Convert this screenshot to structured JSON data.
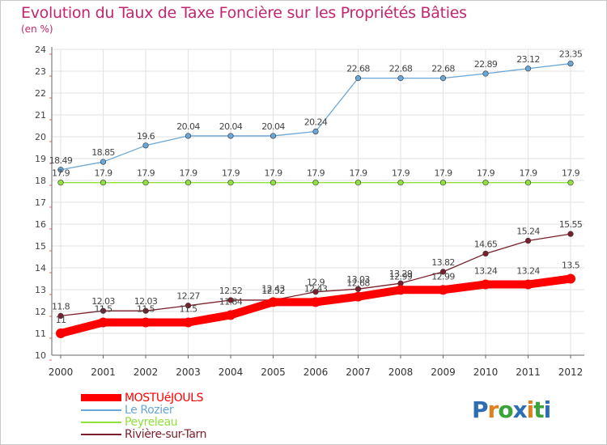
{
  "title": "Evolution du Taux de Taxe Foncière sur les Propriétés Bâties",
  "unit": "(en %)",
  "chart_data": {
    "type": "line",
    "title": "Evolution du Taux de Taxe Foncière sur les Propriétés Bâties",
    "ylabel": "(en %)",
    "xlabel": "",
    "x": [
      "2000",
      "2001",
      "2002",
      "2003",
      "2004",
      "2005",
      "2006",
      "2007",
      "2008",
      "2009",
      "2010",
      "2011",
      "2012"
    ],
    "ylim": [
      10,
      24
    ],
    "yticks": [
      10,
      11,
      12,
      13,
      14,
      15,
      16,
      17,
      18,
      19,
      20,
      21,
      22,
      23,
      24
    ],
    "grid": true,
    "series": [
      {
        "name": "MOSTUéJOULS",
        "color": "#ff0000",
        "values": [
          11,
          11.5,
          11.5,
          11.5,
          11.84,
          12.43,
          12.43,
          12.68,
          12.99,
          12.99,
          13.24,
          13.24,
          13.5
        ],
        "labels": [
          "11",
          "11.5",
          "11.5",
          "11.5",
          "11.84",
          "12.43",
          "12.43",
          "12.68",
          "12.99",
          "12.99",
          "13.24",
          "13.24",
          "13.5"
        ]
      },
      {
        "name": "Le Rozier",
        "color": "#6aa6d6",
        "values": [
          18.49,
          18.85,
          19.6,
          20.04,
          20.04,
          20.04,
          20.24,
          22.68,
          22.68,
          22.68,
          22.89,
          23.12,
          23.35
        ],
        "labels": [
          "18.49",
          "18.85",
          "19.6",
          "20.04",
          "20.04",
          "20.04",
          "20.24",
          "22.68",
          "22.68",
          "22.68",
          "22.89",
          "23.12",
          "23.35"
        ]
      },
      {
        "name": "Peyreleau",
        "color": "#90e040",
        "values": [
          17.9,
          17.9,
          17.9,
          17.9,
          17.9,
          17.9,
          17.9,
          17.9,
          17.9,
          17.9,
          17.9,
          17.9,
          17.9
        ],
        "labels": [
          "17.9",
          "17.9",
          "17.9",
          "17.9",
          "17.9",
          "17.9",
          "17.9",
          "17.9",
          "17.9",
          "17.9",
          "17.9",
          "17.9",
          "17.9"
        ]
      },
      {
        "name": "Rivière-sur-Tarn",
        "color": "#7a1f2b",
        "values": [
          11.8,
          12.03,
          12.03,
          12.27,
          12.52,
          12.52,
          12.9,
          13.03,
          13.29,
          13.82,
          14.65,
          15.24,
          15.55
        ],
        "labels": [
          "11.8",
          "12.03",
          "12.03",
          "12.27",
          "12.52",
          "12.52",
          "12.9",
          "13.03",
          "13.29",
          "13.82",
          "14.65",
          "15.24",
          "15.55"
        ]
      }
    ]
  },
  "legend": [
    {
      "label": "MOSTUéJOULS",
      "color": "#ff0000"
    },
    {
      "label": "Le Rozier",
      "color": "#6aa6d6"
    },
    {
      "label": "Peyreleau",
      "color": "#90e040"
    },
    {
      "label": "Rivière-sur-Tarn",
      "color": "#7a1f2b"
    }
  ],
  "logo": {
    "letters": [
      "P",
      "r",
      "o",
      "x",
      "i",
      "t",
      "i"
    ],
    "colors": [
      "#2e6db4",
      "#e07f1c",
      "#3aa33a",
      "#2e6db4",
      "#e07f1c",
      "#3aa33a",
      "#2e6db4"
    ]
  }
}
